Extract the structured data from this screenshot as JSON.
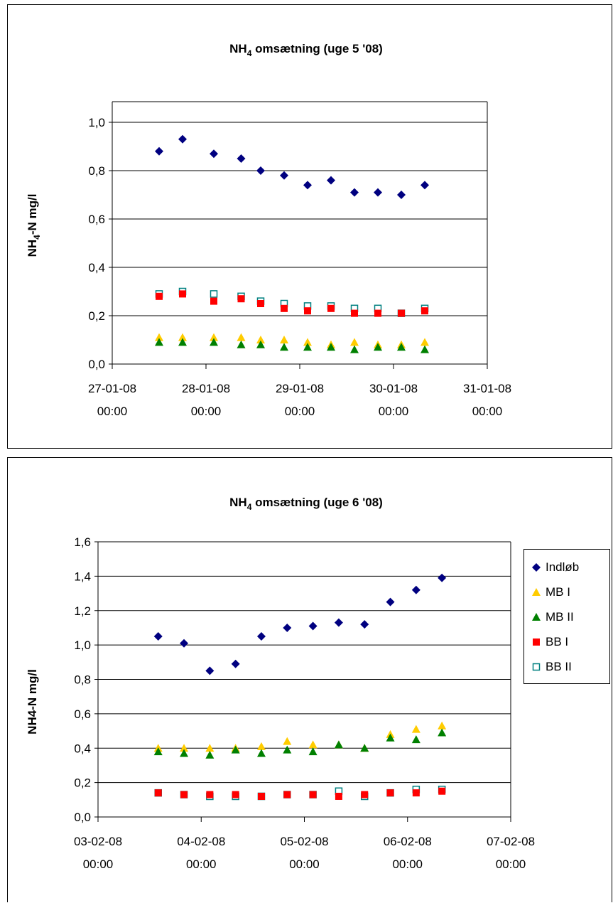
{
  "chart_data": [
    {
      "type": "scatter",
      "title": "NH₄ omsætning (uge 5 '08)",
      "title_main": "NH",
      "title_sub": "4",
      "title_rest": " omsætning (uge 5 '08)",
      "xlabel": "",
      "ylabel": "NH₄-N mg/l",
      "ylabel_main": "NH",
      "ylabel_sub": "4",
      "ylabel_rest": "-N mg/l",
      "xlim": [
        "27-01-08 00:00",
        "31-01-08 00:00"
      ],
      "ylim": [
        0,
        1.0
      ],
      "ytick_labels": [
        "0,0",
        "0,2",
        "0,4",
        "0,6",
        "0,8",
        "1,0"
      ],
      "xtick_labels": [
        [
          "27-01-08",
          "00:00"
        ],
        [
          "28-01-08",
          "00:00"
        ],
        [
          "29-01-08",
          "00:00"
        ],
        [
          "30-01-08",
          "00:00"
        ],
        [
          "31-01-08",
          "00:00"
        ]
      ],
      "grid": true,
      "legend": "none",
      "x": [
        "27-01-08 12:00",
        "27-01-08 18:00",
        "28-01-08 02:00",
        "28-01-08 09:00",
        "28-01-08 14:00",
        "28-01-08 20:00",
        "29-01-08 02:00",
        "29-01-08 08:00",
        "29-01-08 14:00",
        "29-01-08 20:00",
        "30-01-08 02:00",
        "30-01-08 08:00"
      ],
      "series": [
        {
          "name": "Indløb",
          "marker": "diamond",
          "color": "#000080",
          "values": [
            0.88,
            0.93,
            0.87,
            0.85,
            0.8,
            0.78,
            0.74,
            0.76,
            0.71,
            0.71,
            0.7,
            0.74
          ]
        },
        {
          "name": "MB I",
          "marker": "triangle",
          "color": "#FFCC00",
          "values": [
            0.11,
            0.11,
            0.11,
            0.11,
            0.1,
            0.1,
            0.09,
            0.08,
            0.09,
            0.08,
            0.08,
            0.09
          ]
        },
        {
          "name": "MB II",
          "marker": "triangle",
          "color": "#008000",
          "values": [
            0.09,
            0.09,
            0.09,
            0.08,
            0.08,
            0.07,
            0.07,
            0.07,
            0.06,
            0.07,
            0.07,
            0.06
          ]
        },
        {
          "name": "BB I",
          "marker": "square",
          "color": "#FF0000",
          "values": [
            0.28,
            0.29,
            0.26,
            0.27,
            0.25,
            0.23,
            0.22,
            0.23,
            0.21,
            0.21,
            0.21,
            0.22
          ]
        },
        {
          "name": "BB II",
          "marker": "open-square",
          "color": "#008080",
          "values": [
            0.29,
            0.3,
            0.29,
            0.28,
            0.26,
            0.25,
            0.24,
            0.24,
            0.23,
            0.23,
            0.21,
            0.23
          ]
        }
      ]
    },
    {
      "type": "scatter",
      "title": "NH₄ omsætning (uge 6 '08)",
      "title_main": "NH",
      "title_sub": "4",
      "title_rest": " omsætning (uge 6 '08)",
      "xlabel": "",
      "ylabel": "NH4-N mg/l",
      "xlim": [
        "03-02-08 00:00",
        "07-02-08 00:00"
      ],
      "ylim": [
        0,
        1.6
      ],
      "ytick_labels": [
        "0,0",
        "0,2",
        "0,4",
        "0,6",
        "0,8",
        "1,0",
        "1,2",
        "1,4",
        "1,6"
      ],
      "xtick_labels": [
        [
          "03-02-08",
          "00:00"
        ],
        [
          "04-02-08",
          "00:00"
        ],
        [
          "05-02-08",
          "00:00"
        ],
        [
          "06-02-08",
          "00:00"
        ],
        [
          "07-02-08",
          "00:00"
        ]
      ],
      "grid": true,
      "legend": "right",
      "x": [
        "03-02-08 14:00",
        "03-02-08 20:00",
        "04-02-08 02:00",
        "04-02-08 08:00",
        "04-02-08 14:00",
        "04-02-08 20:00",
        "05-02-08 02:00",
        "05-02-08 08:00",
        "05-02-08 14:00",
        "05-02-08 20:00",
        "06-02-08 02:00",
        "06-02-08 08:00"
      ],
      "series": [
        {
          "name": "Indløb",
          "marker": "diamond",
          "color": "#000080",
          "values": [
            1.05,
            1.01,
            0.85,
            0.89,
            1.05,
            1.1,
            1.11,
            1.13,
            1.12,
            1.25,
            1.32,
            1.39
          ]
        },
        {
          "name": "MB I",
          "marker": "triangle",
          "color": "#FFCC00",
          "values": [
            0.4,
            0.4,
            0.4,
            0.4,
            0.41,
            0.44,
            0.42,
            0.42,
            0.4,
            0.48,
            0.51,
            0.53
          ]
        },
        {
          "name": "MB II",
          "marker": "triangle",
          "color": "#008000",
          "values": [
            0.38,
            0.37,
            0.36,
            0.39,
            0.37,
            0.39,
            0.38,
            0.42,
            0.4,
            0.46,
            0.45,
            0.49
          ]
        },
        {
          "name": "BB I",
          "marker": "square",
          "color": "#FF0000",
          "values": [
            0.14,
            0.13,
            0.13,
            0.13,
            0.12,
            0.13,
            0.13,
            0.12,
            0.13,
            0.14,
            0.14,
            0.15
          ]
        },
        {
          "name": "BB II",
          "marker": "open-square",
          "color": "#008080",
          "values": [
            0.14,
            0.13,
            0.12,
            0.12,
            0.12,
            0.13,
            0.13,
            0.15,
            0.12,
            0.14,
            0.16,
            0.16
          ]
        }
      ]
    }
  ],
  "legend": {
    "items": [
      {
        "label": "Indløb",
        "marker": "diamond",
        "color": "#000080"
      },
      {
        "label": "MB I",
        "marker": "triangle",
        "color": "#FFCC00"
      },
      {
        "label": "MB II",
        "marker": "triangle",
        "color": "#008000"
      },
      {
        "label": "BB I",
        "marker": "square",
        "color": "#FF0000"
      },
      {
        "label": "BB II",
        "marker": "open-square",
        "color": "#008080"
      }
    ]
  }
}
